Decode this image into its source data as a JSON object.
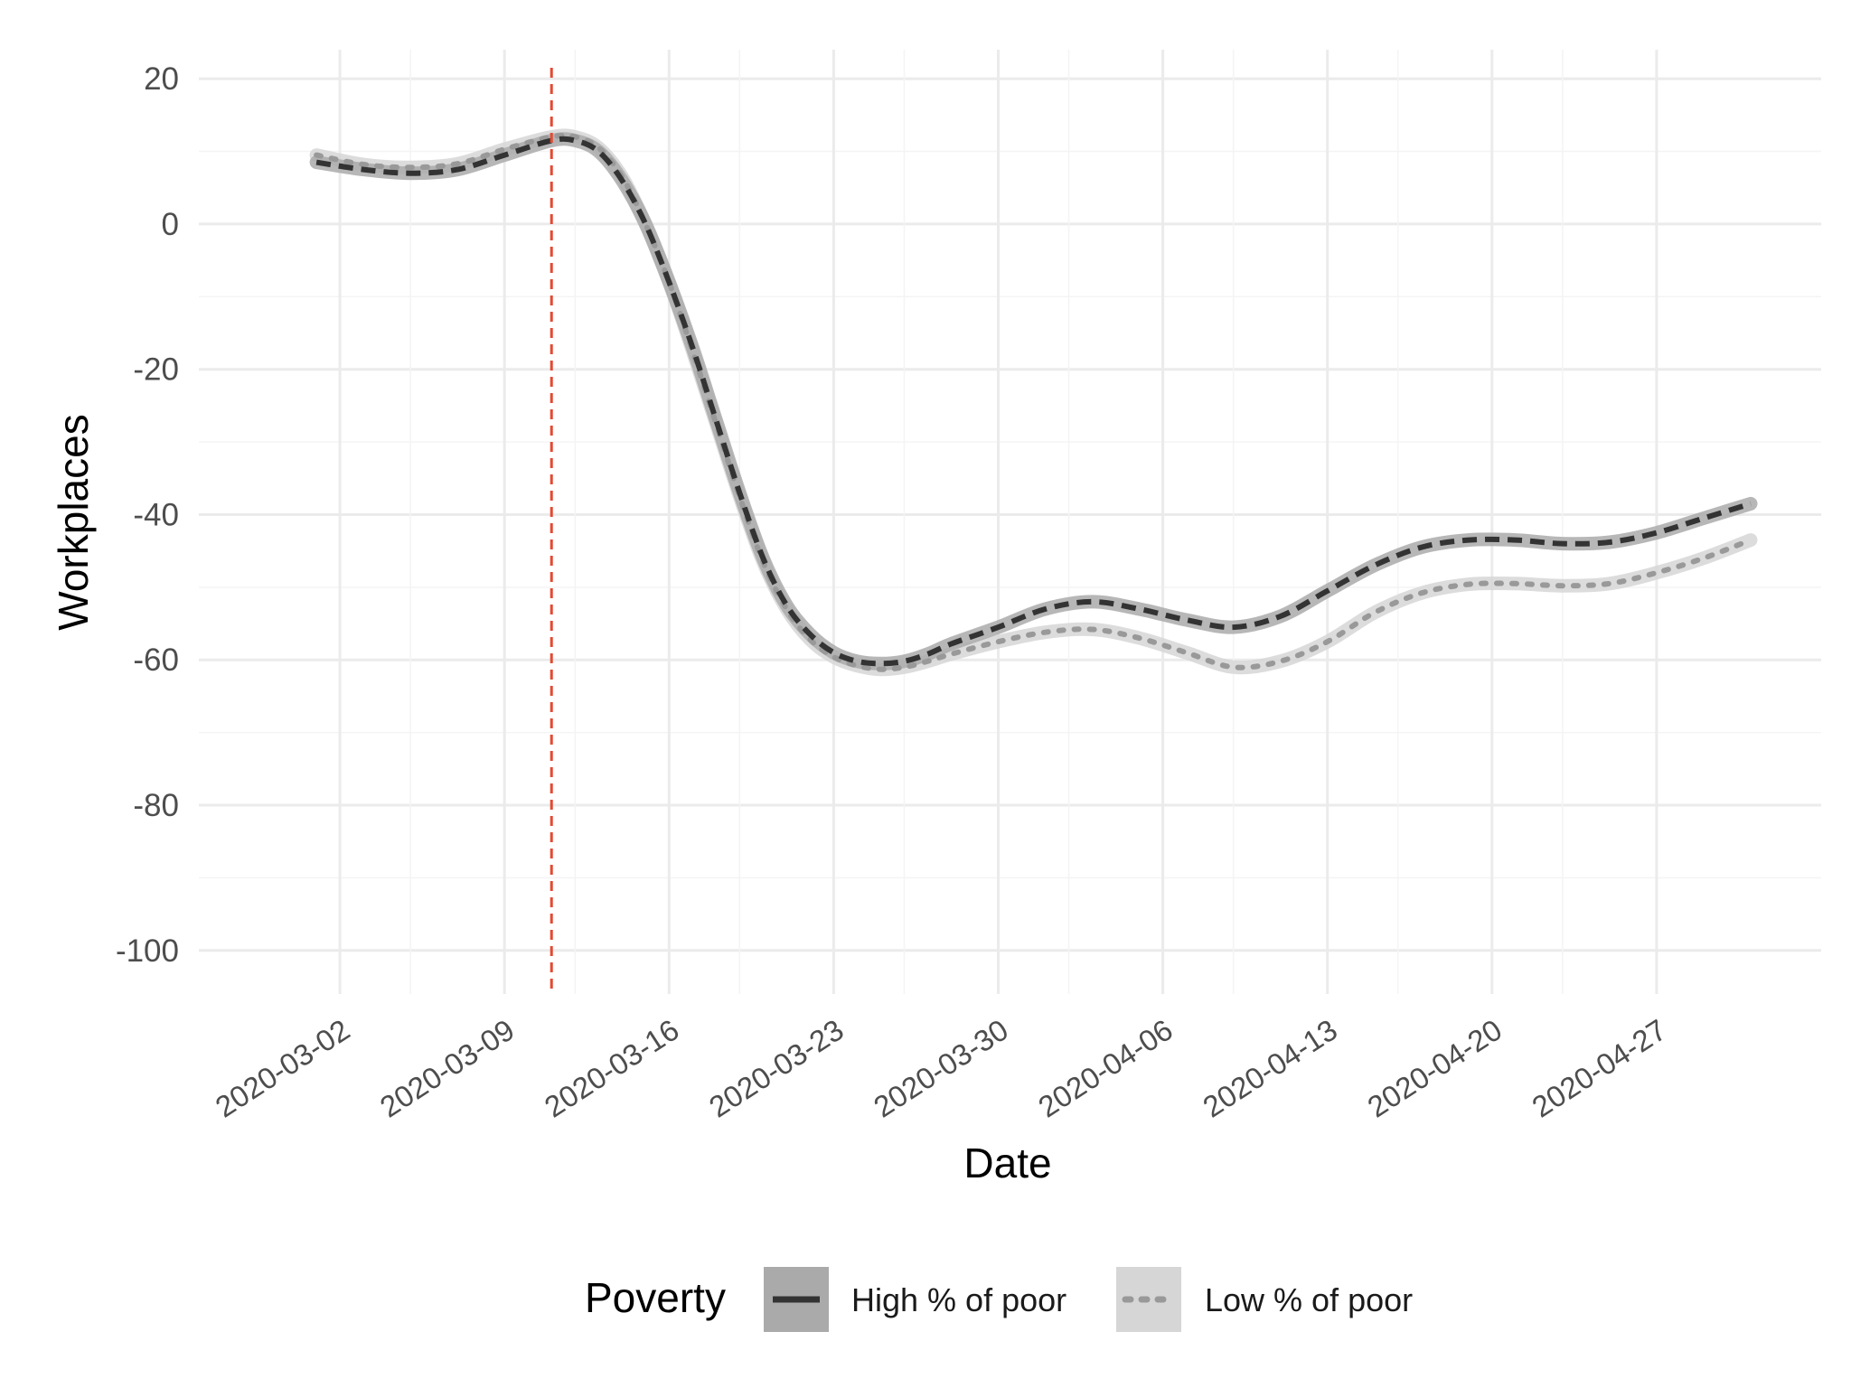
{
  "chart_data": {
    "type": "line",
    "xlabel": "Date",
    "ylabel": "Workplaces",
    "ylim": [
      -106,
      24
    ],
    "xlim": [
      "2020-02-25",
      "2020-05-04"
    ],
    "grid": true,
    "legend_position": "bottom",
    "legend_title": "Poverty",
    "x_ticks": [
      "2020-03-02",
      "2020-03-09",
      "2020-03-16",
      "2020-03-23",
      "2020-03-30",
      "2020-04-06",
      "2020-04-13",
      "2020-04-20",
      "2020-04-27"
    ],
    "y_ticks": [
      20,
      0,
      -20,
      -40,
      -60,
      -80,
      -100
    ],
    "vline": {
      "x": "2020-03-11",
      "color": "#e34a33",
      "style": "dashed"
    },
    "series": [
      {
        "name": "High % of poor",
        "line_color": "#333333",
        "band_color": "#aaaaaa",
        "dash": "dashed",
        "points": [
          [
            "2020-03-01",
            8.5
          ],
          [
            "2020-03-03",
            7.5
          ],
          [
            "2020-03-05",
            7.0
          ],
          [
            "2020-03-07",
            7.5
          ],
          [
            "2020-03-09",
            9.5
          ],
          [
            "2020-03-11",
            11.5
          ],
          [
            "2020-03-12",
            11.5
          ],
          [
            "2020-03-13",
            10.0
          ],
          [
            "2020-03-14",
            6.0
          ],
          [
            "2020-03-15",
            0.0
          ],
          [
            "2020-03-16",
            -8.0
          ],
          [
            "2020-03-17",
            -17.0
          ],
          [
            "2020-03-18",
            -27.0
          ],
          [
            "2020-03-19",
            -37.0
          ],
          [
            "2020-03-20",
            -46.0
          ],
          [
            "2020-03-21",
            -52.5
          ],
          [
            "2020-03-22",
            -56.5
          ],
          [
            "2020-03-23",
            -59.0
          ],
          [
            "2020-03-24",
            -60.2
          ],
          [
            "2020-03-25",
            -60.5
          ],
          [
            "2020-03-26",
            -60.2
          ],
          [
            "2020-03-27",
            -59.2
          ],
          [
            "2020-03-28",
            -57.8
          ],
          [
            "2020-03-30",
            -55.5
          ],
          [
            "2020-04-01",
            -53.0
          ],
          [
            "2020-04-03",
            -52.0
          ],
          [
            "2020-04-05",
            -53.0
          ],
          [
            "2020-04-07",
            -54.5
          ],
          [
            "2020-04-09",
            -55.5
          ],
          [
            "2020-04-11",
            -54.0
          ],
          [
            "2020-04-13",
            -50.5
          ],
          [
            "2020-04-15",
            -47.0
          ],
          [
            "2020-04-17",
            -44.5
          ],
          [
            "2020-04-19",
            -43.5
          ],
          [
            "2020-04-21",
            -43.5
          ],
          [
            "2020-04-23",
            -44.0
          ],
          [
            "2020-04-25",
            -43.8
          ],
          [
            "2020-04-27",
            -42.5
          ],
          [
            "2020-04-29",
            -40.5
          ],
          [
            "2020-05-01",
            -38.5
          ]
        ]
      },
      {
        "name": "Low % of poor",
        "line_color": "#999999",
        "band_color": "#d6d6d6",
        "dash": "dotted",
        "points": [
          [
            "2020-03-01",
            9.5
          ],
          [
            "2020-03-03",
            8.2
          ],
          [
            "2020-03-05",
            7.8
          ],
          [
            "2020-03-07",
            8.3
          ],
          [
            "2020-03-09",
            10.3
          ],
          [
            "2020-03-11",
            12.0
          ],
          [
            "2020-03-12",
            12.0
          ],
          [
            "2020-03-13",
            10.5
          ],
          [
            "2020-03-14",
            6.5
          ],
          [
            "2020-03-15",
            0.0
          ],
          [
            "2020-03-16",
            -8.0
          ],
          [
            "2020-03-17",
            -17.5
          ],
          [
            "2020-03-18",
            -27.5
          ],
          [
            "2020-03-19",
            -37.5
          ],
          [
            "2020-03-20",
            -46.5
          ],
          [
            "2020-03-21",
            -53.0
          ],
          [
            "2020-03-22",
            -57.2
          ],
          [
            "2020-03-23",
            -59.6
          ],
          [
            "2020-03-24",
            -60.8
          ],
          [
            "2020-03-25",
            -61.3
          ],
          [
            "2020-03-26",
            -61.0
          ],
          [
            "2020-03-27",
            -60.2
          ],
          [
            "2020-03-28",
            -59.2
          ],
          [
            "2020-03-30",
            -57.5
          ],
          [
            "2020-04-01",
            -56.2
          ],
          [
            "2020-04-03",
            -55.8
          ],
          [
            "2020-04-05",
            -57.0
          ],
          [
            "2020-04-07",
            -59.0
          ],
          [
            "2020-04-09",
            -61.0
          ],
          [
            "2020-04-11",
            -60.2
          ],
          [
            "2020-04-13",
            -57.5
          ],
          [
            "2020-04-15",
            -53.5
          ],
          [
            "2020-04-17",
            -50.8
          ],
          [
            "2020-04-19",
            -49.6
          ],
          [
            "2020-04-21",
            -49.5
          ],
          [
            "2020-04-23",
            -49.8
          ],
          [
            "2020-04-25",
            -49.5
          ],
          [
            "2020-04-27",
            -48.0
          ],
          [
            "2020-04-29",
            -46.0
          ],
          [
            "2020-05-01",
            -43.5
          ]
        ]
      }
    ]
  }
}
